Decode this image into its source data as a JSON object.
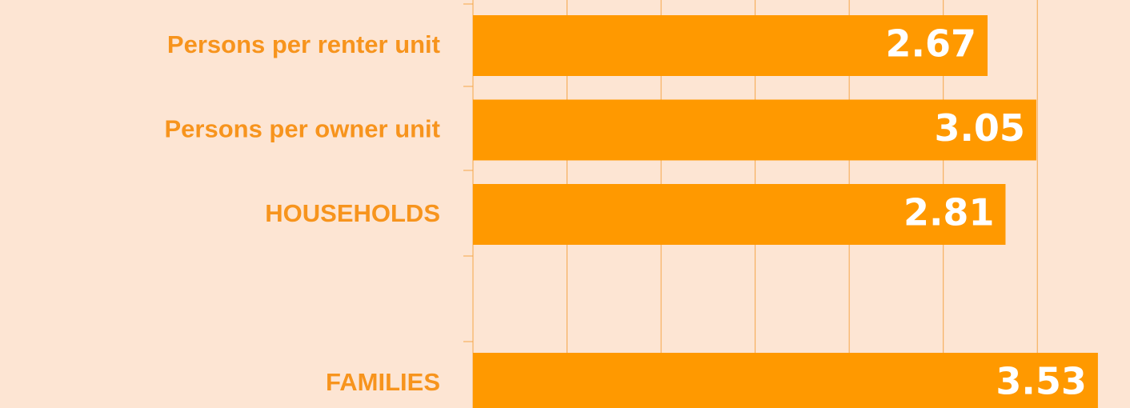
{
  "chart_data": {
    "type": "bar",
    "orientation": "horizontal",
    "categories": [
      "Persons per renter unit",
      "Persons per owner unit",
      "HOUSEHOLDS",
      null,
      "FAMILIES"
    ],
    "values": [
      2.67,
      3.05,
      2.81,
      null,
      3.53
    ],
    "color": "#ff9900",
    "xlim": [
      -1.34,
      3.78
    ],
    "xticks": [
      -0.607,
      0.126,
      0.859,
      1.592,
      2.325,
      3.058
    ],
    "grid": true
  }
}
